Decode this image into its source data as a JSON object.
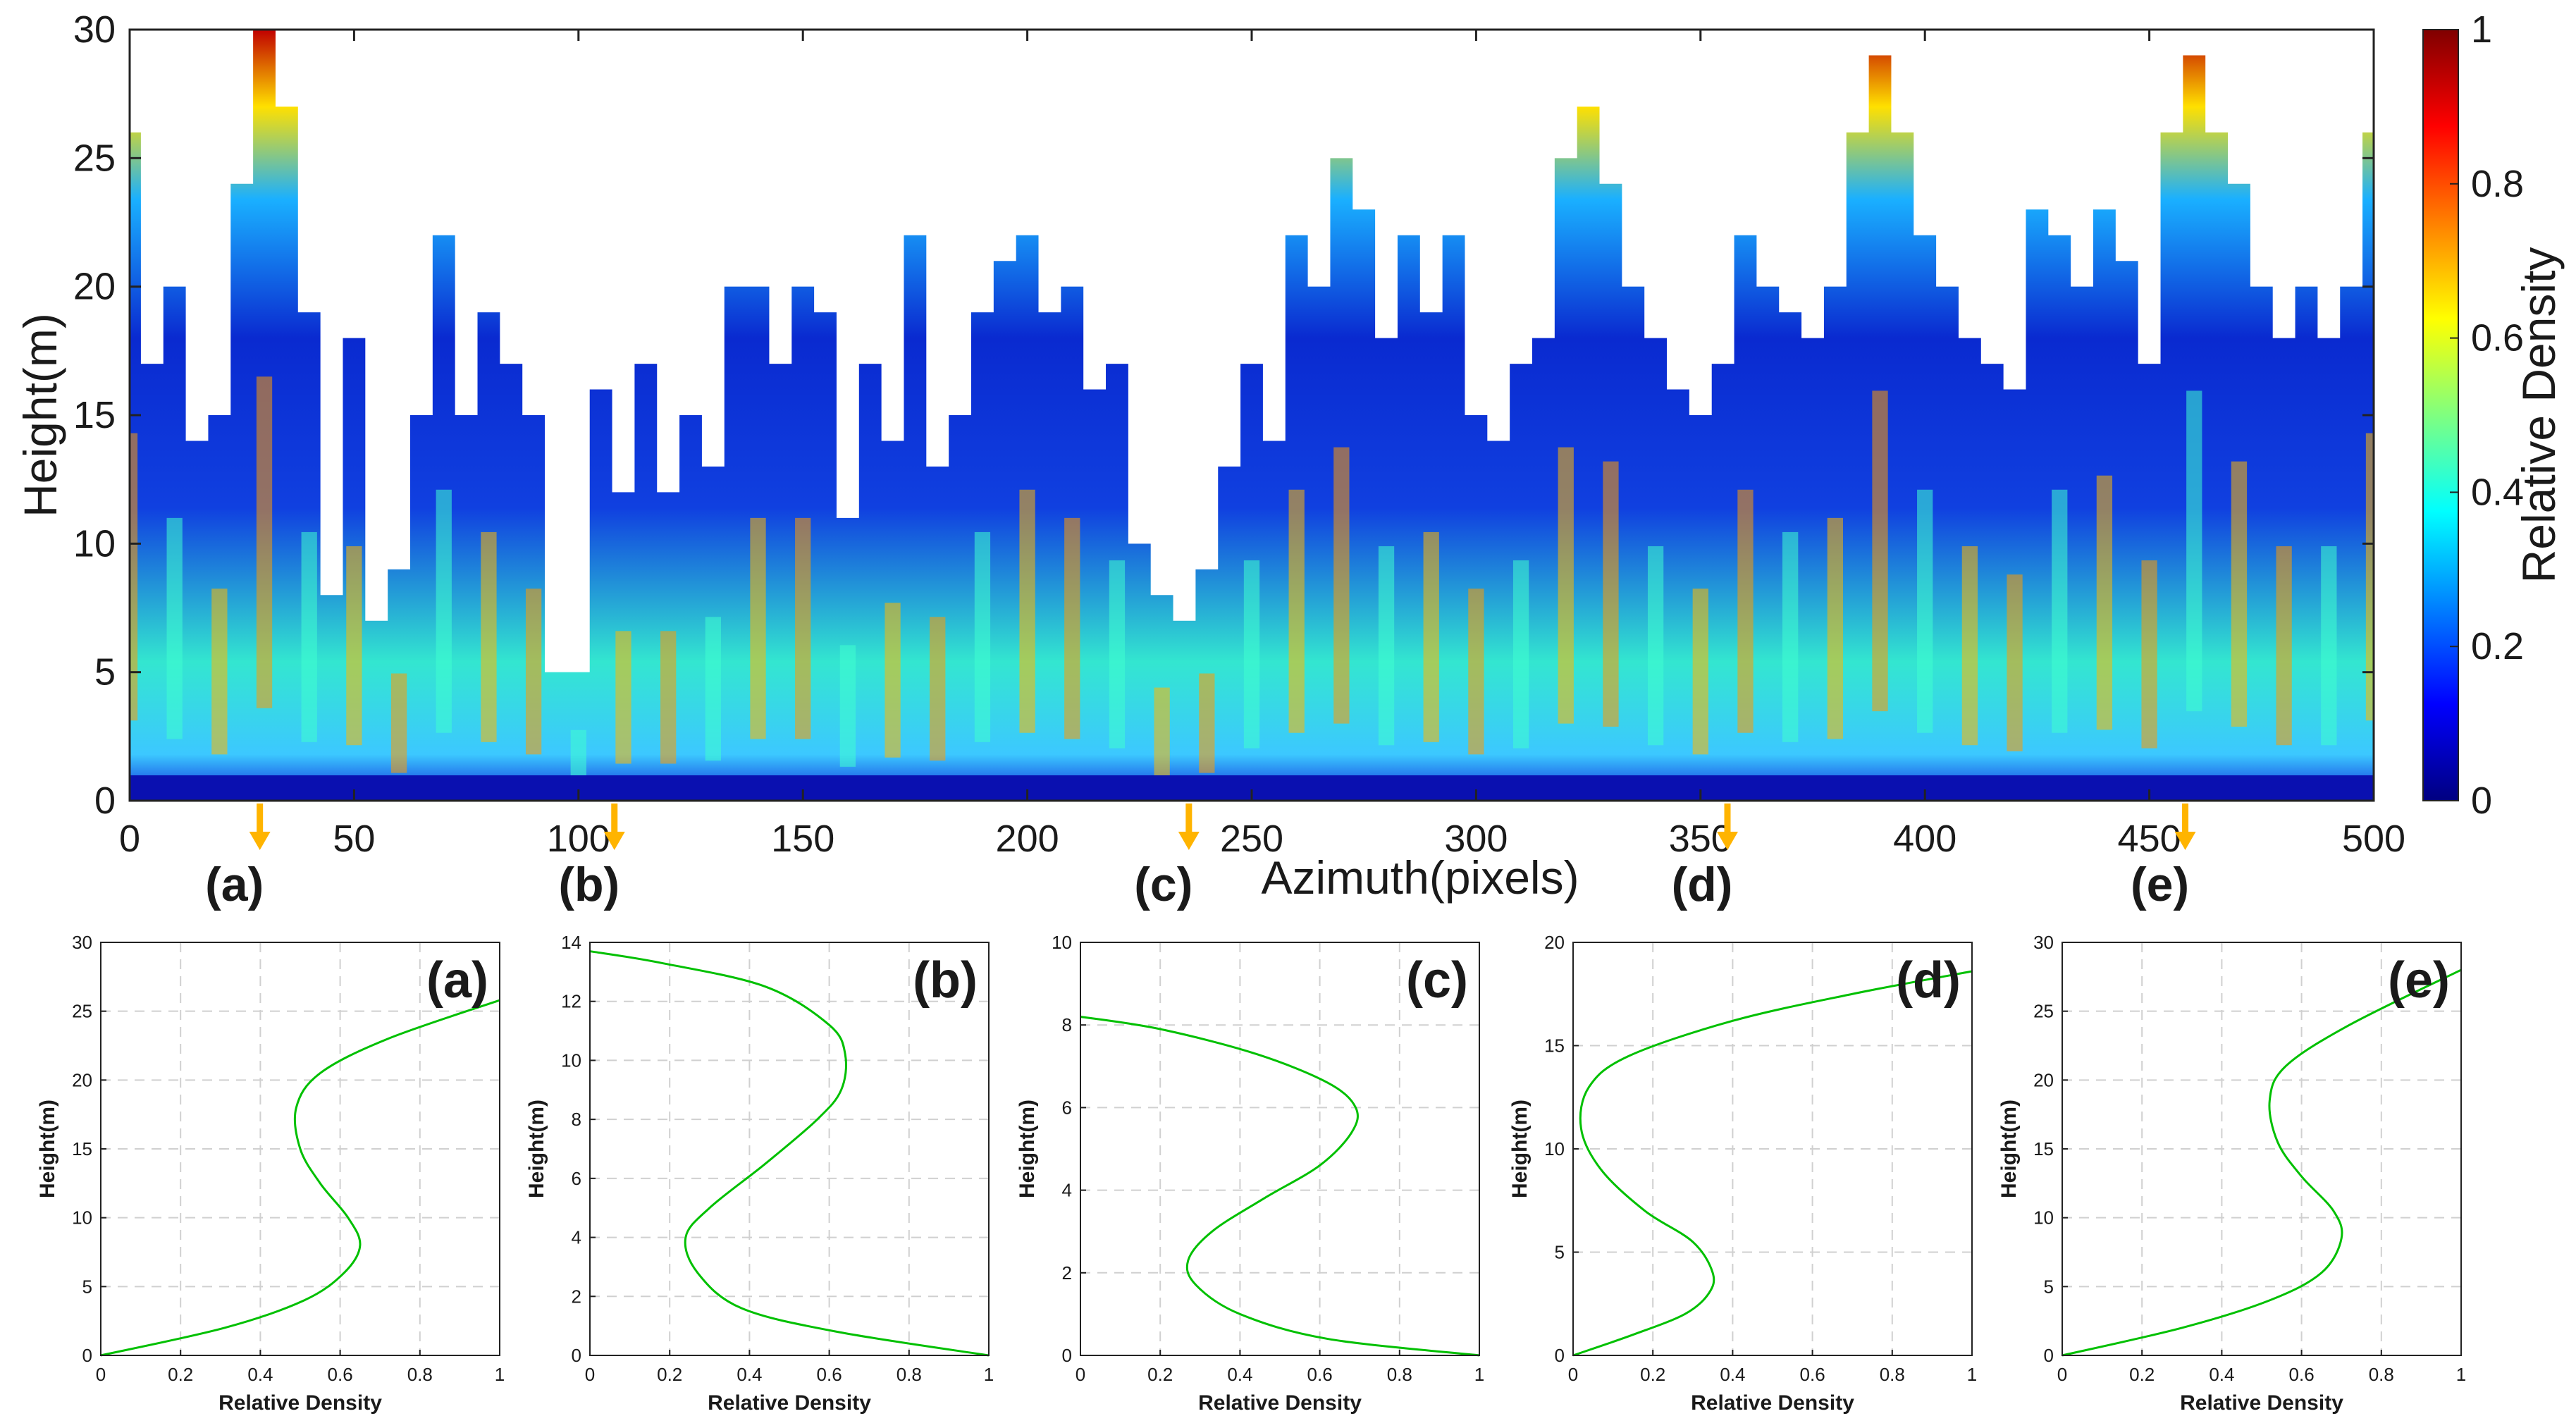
{
  "chart_data": [
    {
      "type": "heatmap",
      "title": "",
      "xlabel": "Azimuth(pixels)",
      "ylabel": "Height(m)",
      "xlim": [
        0,
        500
      ],
      "ylim": [
        0,
        30
      ],
      "xticks": [
        "0",
        "50",
        "100",
        "150",
        "200",
        "250",
        "300",
        "350",
        "400",
        "450",
        "500"
      ],
      "yticks": [
        "0",
        "5",
        "10",
        "15",
        "20",
        "25",
        "30"
      ],
      "colorbar": {
        "label": "Relative Density",
        "range": [
          0,
          1
        ],
        "ticks": [
          "0",
          "0.2",
          "0.4",
          "0.6",
          "0.8",
          "1"
        ],
        "colormap": "jet"
      },
      "canopy_top_profile": {
        "azimuth": [
          0,
          5,
          10,
          15,
          20,
          25,
          30,
          35,
          40,
          45,
          50,
          55,
          60,
          65,
          70,
          75,
          80,
          85,
          90,
          95,
          100,
          105,
          110,
          115,
          120,
          125,
          130,
          135,
          140,
          145,
          150,
          155,
          160,
          165,
          170,
          175,
          180,
          185,
          190,
          195,
          200,
          205,
          210,
          215,
          220,
          225,
          230,
          235,
          240,
          245,
          250,
          255,
          260,
          265,
          270,
          275,
          280,
          285,
          290,
          295,
          300,
          305,
          310,
          315,
          320,
          325,
          330,
          335,
          340,
          345,
          350,
          355,
          360,
          365,
          370,
          375,
          380,
          385,
          390,
          395,
          400,
          405,
          410,
          415,
          420,
          425,
          430,
          435,
          440,
          445,
          450,
          455,
          460,
          465,
          470,
          475,
          480,
          485,
          490,
          495,
          500
        ],
        "height": [
          26,
          17,
          20,
          14,
          15,
          24,
          30,
          27,
          19,
          8,
          18,
          7,
          9,
          15,
          22,
          15,
          19,
          17,
          15,
          5,
          5,
          16,
          12,
          17,
          12,
          15,
          13,
          20,
          20,
          17,
          20,
          19,
          11,
          17,
          14,
          22,
          13,
          15,
          19,
          21,
          22,
          19,
          20,
          16,
          17,
          10,
          8,
          7,
          9,
          13,
          17,
          14,
          22,
          20,
          25,
          23,
          18,
          22,
          19,
          22,
          15,
          14,
          17,
          18,
          25,
          27,
          24,
          20,
          18,
          16,
          15,
          17,
          22,
          20,
          19,
          18,
          20,
          26,
          29,
          26,
          22,
          20,
          18,
          17,
          16,
          23,
          22,
          20,
          23,
          21,
          17,
          26,
          29,
          26,
          24,
          20,
          18,
          20,
          18,
          20,
          26
        ]
      },
      "arrows": [
        {
          "label": "(a)",
          "azimuth": 29
        },
        {
          "label": "(b)",
          "azimuth": 108
        },
        {
          "label": "(c)",
          "azimuth": 236
        },
        {
          "label": "(d)",
          "azimuth": 356
        },
        {
          "label": "(e)",
          "azimuth": 458
        }
      ],
      "line_color": "#00c000",
      "arrow_color": "#ffb400"
    },
    {
      "type": "line",
      "label": "(a)",
      "xlabel": "Relative Density",
      "ylabel": "Height(m)",
      "xlim": [
        0,
        1
      ],
      "ylim": [
        0,
        30
      ],
      "xticks": [
        "0",
        "0.2",
        "0.4",
        "0.6",
        "0.8",
        "1"
      ],
      "yticks": [
        "0",
        "5",
        "10",
        "15",
        "20",
        "25",
        "30"
      ],
      "series": [
        {
          "x": [
            0,
            0.31,
            0.51,
            0.61,
            0.65,
            0.62,
            0.55,
            0.5,
            0.49,
            0.55,
            0.72,
            1.0
          ],
          "y": [
            0,
            2,
            4,
            6,
            8,
            10,
            12.5,
            15,
            18,
            20.5,
            23,
            25.8
          ]
        }
      ]
    },
    {
      "type": "line",
      "label": "(b)",
      "xlabel": "Relative Density",
      "ylabel": "Height(m)",
      "xlim": [
        0,
        1
      ],
      "ylim": [
        0,
        14
      ],
      "xticks": [
        "0",
        "0.2",
        "0.4",
        "0.6",
        "0.8",
        "1"
      ],
      "yticks": [
        "0",
        "2",
        "4",
        "6",
        "8",
        "10",
        "12",
        "14"
      ],
      "series": [
        {
          "x": [
            1.0,
            0.62,
            0.38,
            0.27,
            0.24,
            0.3,
            0.44,
            0.57,
            0.63,
            0.64,
            0.6,
            0.44,
            0.18,
            0
          ],
          "y": [
            0,
            0.8,
            1.6,
            2.8,
            4,
            5,
            6.5,
            8,
            9,
            10.2,
            11.2,
            12.5,
            13.3,
            13.7
          ]
        }
      ]
    },
    {
      "type": "line",
      "label": "(c)",
      "xlabel": "Relative Density",
      "ylabel": "Height(m)",
      "xlim": [
        0,
        1
      ],
      "ylim": [
        0,
        10
      ],
      "xticks": [
        "0",
        "0.2",
        "0.4",
        "0.6",
        "0.8",
        "1"
      ],
      "yticks": [
        "0",
        "2",
        "4",
        "6",
        "8",
        "10"
      ],
      "series": [
        {
          "x": [
            1.0,
            0.62,
            0.4,
            0.29,
            0.27,
            0.33,
            0.46,
            0.6,
            0.68,
            0.69,
            0.62,
            0.44,
            0.2,
            0
          ],
          "y": [
            0,
            0.4,
            1.0,
            1.7,
            2.3,
            3,
            3.8,
            4.6,
            5.4,
            6.0,
            6.6,
            7.3,
            7.9,
            8.2
          ]
        }
      ]
    },
    {
      "type": "line",
      "label": "(d)",
      "xlabel": "Relative Density",
      "ylabel": "Height(m)",
      "xlim": [
        0,
        1
      ],
      "ylim": [
        0,
        20
      ],
      "xticks": [
        "0",
        "0.2",
        "0.4",
        "0.6",
        "0.8",
        "1"
      ],
      "yticks": [
        "0",
        "5",
        "10",
        "15",
        "20"
      ],
      "series": [
        {
          "x": [
            0,
            0.15,
            0.28,
            0.34,
            0.35,
            0.3,
            0.18,
            0.07,
            0.02,
            0.04,
            0.14,
            0.4,
            0.7,
            1.0
          ],
          "y": [
            0,
            1,
            2,
            3,
            4,
            5.5,
            7,
            9,
            11,
            13,
            14.5,
            16.2,
            17.5,
            18.6
          ]
        }
      ]
    },
    {
      "type": "line",
      "label": "(e)",
      "xlabel": "Relative Density",
      "ylabel": "Height(m)",
      "xlim": [
        0,
        1
      ],
      "ylim": [
        0,
        30
      ],
      "xticks": [
        "0",
        "0.2",
        "0.4",
        "0.6",
        "0.8",
        "1"
      ],
      "yticks": [
        "0",
        "5",
        "10",
        "15",
        "20",
        "25",
        "30"
      ],
      "series": [
        {
          "x": [
            0,
            0.3,
            0.52,
            0.65,
            0.7,
            0.68,
            0.6,
            0.54,
            0.52,
            0.56,
            0.72,
            1.0
          ],
          "y": [
            0,
            2,
            4,
            6,
            8.5,
            10.5,
            13,
            15.5,
            18.5,
            21,
            24,
            28
          ]
        }
      ]
    }
  ]
}
